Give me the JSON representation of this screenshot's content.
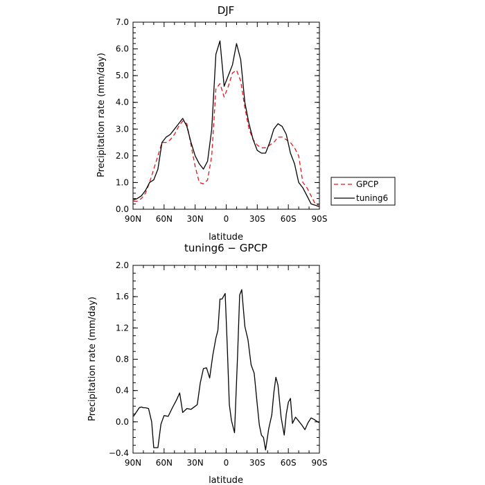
{
  "chart_data": [
    {
      "type": "line",
      "title": "DJF",
      "xlabel": "latitude",
      "ylabel": "Precipitation rate (mm/day)",
      "xlim": [
        90,
        -90
      ],
      "ylim": [
        0,
        7
      ],
      "x_ticks": [
        90,
        60,
        30,
        0,
        -30,
        -60,
        -90
      ],
      "x_tick_labels": [
        "90N",
        "60N",
        "30N",
        "0",
        "30S",
        "60S",
        "90S"
      ],
      "y_ticks": [
        0,
        1,
        2,
        3,
        4,
        5,
        6,
        7
      ],
      "y_tick_labels": [
        "0.0",
        "1.0",
        "2.0",
        "3.0",
        "4.0",
        "5.0",
        "6.0",
        "7.0"
      ],
      "legend": "outside-right",
      "series": [
        {
          "name": "GPCP",
          "color": "#e8141b",
          "dash": "dashed",
          "x": [
            89.5,
            86,
            82,
            78,
            74,
            70,
            66,
            62,
            58,
            54,
            50,
            46,
            42,
            38,
            34,
            30,
            26,
            22,
            18,
            14,
            10,
            6,
            2,
            -2,
            -6,
            -10,
            -14,
            -18,
            -22,
            -26,
            -30,
            -34,
            -38,
            -42,
            -46,
            -50,
            -54,
            -58,
            -62,
            -66,
            -70,
            -74,
            -78,
            -82,
            -86,
            -89.5
          ],
          "values": [
            0.3,
            0.3,
            0.4,
            0.6,
            1.0,
            1.5,
            2.0,
            2.5,
            2.5,
            2.6,
            2.8,
            3.1,
            3.3,
            3.2,
            2.4,
            1.6,
            1.0,
            0.95,
            1.1,
            2.0,
            4.5,
            4.7,
            4.2,
            4.6,
            5.1,
            5.2,
            4.8,
            3.8,
            3.0,
            2.6,
            2.4,
            2.3,
            2.3,
            2.4,
            2.5,
            2.7,
            2.7,
            2.6,
            2.5,
            2.3,
            2.0,
            1.0,
            0.8,
            0.5,
            0.2,
            0.15
          ]
        },
        {
          "name": "tuning6",
          "color": "#000000",
          "dash": "solid",
          "x": [
            89.5,
            86,
            82,
            78,
            74,
            70,
            66,
            62,
            58,
            54,
            50,
            46,
            42,
            38,
            34,
            30,
            26,
            22,
            18,
            14,
            10,
            6,
            2,
            -2,
            -6,
            -10,
            -14,
            -18,
            -22,
            -26,
            -30,
            -34,
            -38,
            -42,
            -46,
            -50,
            -54,
            -58,
            -62,
            -66,
            -70,
            -74,
            -78,
            -82,
            -86,
            -89.5
          ],
          "values": [
            0.35,
            0.4,
            0.5,
            0.7,
            1.0,
            1.1,
            1.5,
            2.5,
            2.7,
            2.8,
            3.0,
            3.2,
            3.4,
            3.1,
            2.5,
            2.0,
            1.7,
            1.5,
            1.8,
            3.0,
            5.8,
            6.3,
            4.6,
            5.0,
            5.4,
            6.2,
            5.6,
            4.0,
            3.2,
            2.6,
            2.2,
            2.1,
            2.1,
            2.5,
            3.0,
            3.2,
            3.1,
            2.8,
            2.1,
            1.7,
            1.0,
            0.8,
            0.5,
            0.2,
            0.15,
            0.1
          ]
        }
      ]
    },
    {
      "type": "line",
      "title": "tuning6 − GPCP",
      "xlabel": "latitude",
      "ylabel": "Precipitation rate (mm/day)",
      "xlim": [
        90,
        -90
      ],
      "ylim": [
        -0.4,
        2.0
      ],
      "x_ticks": [
        90,
        60,
        30,
        0,
        -30,
        -60,
        -90
      ],
      "x_tick_labels": [
        "90N",
        "60N",
        "30N",
        "0",
        "30S",
        "60S",
        "90S"
      ],
      "y_ticks": [
        -0.4,
        0,
        0.4,
        0.8,
        1.2,
        1.6,
        2.0
      ],
      "y_tick_labels": [
        "−0.4",
        "0.0",
        "0.4",
        "0.8",
        "1.2",
        "1.6",
        "2.0"
      ],
      "series": [
        {
          "color": "#000000",
          "dash": "solid",
          "x": [
            89.5,
            86,
            84,
            82,
            80,
            78,
            75,
            72,
            70,
            66,
            63,
            60,
            56,
            52,
            48,
            45,
            42,
            38,
            34,
            30,
            28,
            25,
            22,
            19,
            16,
            13,
            10,
            8,
            6,
            4,
            1,
            -1,
            -3,
            -5,
            -8,
            -11,
            -13,
            -15,
            -18,
            -21,
            -24,
            -27,
            -30,
            -32,
            -34,
            -36,
            -38,
            -41,
            -44,
            -46,
            -48,
            -50,
            -53,
            -56,
            -58,
            -60,
            -62,
            -64,
            -67,
            -70,
            -73,
            -76,
            -79,
            -82,
            -85,
            -89.5
          ],
          "values": [
            0.07,
            0.14,
            0.18,
            0.19,
            0.18,
            0.18,
            0.17,
            0.0,
            -0.33,
            -0.33,
            -0.03,
            0.08,
            0.07,
            0.18,
            0.28,
            0.37,
            0.12,
            0.17,
            0.16,
            0.2,
            0.22,
            0.5,
            0.68,
            0.69,
            0.56,
            0.85,
            1.07,
            1.17,
            1.57,
            1.57,
            1.64,
            0.97,
            0.22,
            0.02,
            -0.14,
            0.85,
            1.62,
            1.69,
            1.22,
            1.05,
            0.73,
            0.62,
            0.22,
            -0.04,
            -0.17,
            -0.2,
            -0.36,
            -0.09,
            0.09,
            0.37,
            0.57,
            0.47,
            0.06,
            -0.17,
            0.1,
            0.25,
            0.3,
            -0.02,
            0.06,
            0.01,
            -0.04,
            -0.1,
            -0.01,
            0.05,
            0.03,
            -0.01
          ]
        }
      ]
    }
  ]
}
